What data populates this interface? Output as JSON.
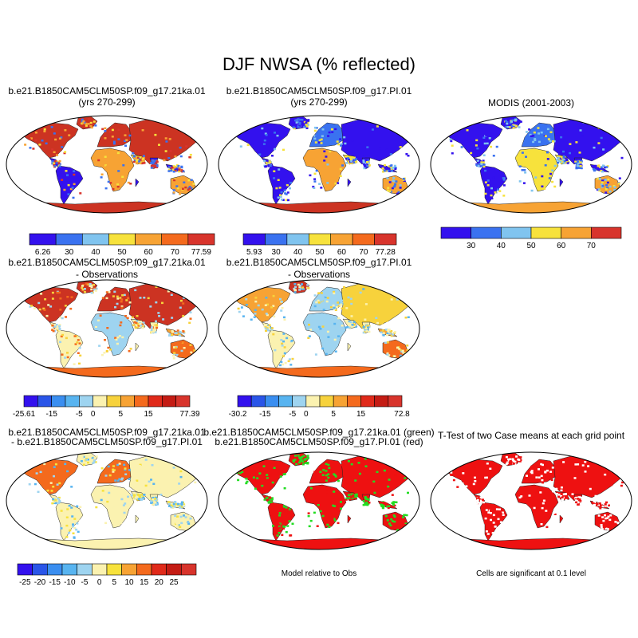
{
  "main_title": "DJF NWSA (% reflected)",
  "chart_data": [
    {
      "type": "map",
      "title_line1": "b.e21.B1850CAM5CLM50SP.f09_g17.21ka.01",
      "title_line2": "(yrs 270-299)",
      "colorbar": {
        "labels": [
          "6.26",
          "30",
          "40",
          "50",
          "60",
          "70",
          "77.59"
        ],
        "colors": [
          "#3311ee",
          "#3a72f0",
          "#80c4ef",
          "#f7e23c",
          "#f7a334",
          "#f46a1d",
          "#d8342c"
        ]
      }
    },
    {
      "type": "map",
      "title_line1": "b.e21.B1850CAM5CLM50SP.f09_g17.PI.01",
      "title_line2": "(yrs 270-299)",
      "colorbar": {
        "labels": [
          "5.93",
          "30",
          "40",
          "50",
          "60",
          "70",
          "77.28"
        ],
        "colors": [
          "#3311ee",
          "#3a72f0",
          "#80c4ef",
          "#f7e23c",
          "#f7a334",
          "#f46a1d",
          "#d8342c"
        ]
      }
    },
    {
      "type": "map",
      "title_line1": "MODIS (2001-2003)",
      "title_line2": "",
      "colorbar": {
        "labels": [
          "30",
          "40",
          "50",
          "60",
          "70"
        ],
        "colors": [
          "#3311ee",
          "#3a72f0",
          "#80c4ef",
          "#f7e23c",
          "#f7a334",
          "#d8342c"
        ]
      }
    },
    {
      "type": "map",
      "title_line1": "b.e21.B1850CAM5CLM50SP.f09_g17.21ka.01",
      "title_line2": "- Observations",
      "colorbar": {
        "labels": [
          "-25.61",
          "-15",
          "-5",
          "0",
          "5",
          "15",
          "77.39"
        ],
        "colors": [
          "#3311ee",
          "#2a55e8",
          "#3a8ef0",
          "#58b4f0",
          "#9ed4f0",
          "#fbf2b0",
          "#f7d23c",
          "#f7a334",
          "#f46a1d",
          "#e02a1a",
          "#c41c14",
          "#d8342c"
        ]
      }
    },
    {
      "type": "map",
      "title_line1": "b.e21.B1850CAM5CLM50SP.f09_g17.PI.01",
      "title_line2": "- Observations",
      "colorbar": {
        "labels": [
          "-30.2",
          "-15",
          "-5",
          "0",
          "5",
          "15",
          "72.8"
        ],
        "colors": [
          "#3311ee",
          "#2a55e8",
          "#3a8ef0",
          "#58b4f0",
          "#9ed4f0",
          "#fbf2b0",
          "#f7d23c",
          "#f7a334",
          "#f46a1d",
          "#e02a1a",
          "#c41c14",
          "#d8342c"
        ]
      }
    },
    {
      "type": "map",
      "title_line1": "b.e21.B1850CAM5CLM50SP.f09_g17.21ka.01",
      "title_line2": "- b.e21.B1850CAM5CLM50SP.f09_g17.PI.01",
      "colorbar": {
        "labels": [
          "-25",
          "-20",
          "-15",
          "-10",
          "-5",
          "0",
          "5",
          "10",
          "15",
          "20",
          "25"
        ],
        "colors": [
          "#3311ee",
          "#2a55e8",
          "#3a8ef0",
          "#58b4f0",
          "#9ed4f0",
          "#fbf2b0",
          "#f7e23c",
          "#f7a334",
          "#f46a1d",
          "#e02a1a",
          "#c41c14",
          "#d8342c"
        ]
      }
    },
    {
      "type": "map",
      "title_line1": "b.e21.B1850CAM5CLM50SP.f09_g17.21ka.01 (green)",
      "title_line2": "b.e21.B1850CAM5CLM50SP.f09_g17.PI.01 (red)",
      "footnote": "Model relative to Obs"
    },
    {
      "type": "map",
      "title_line1": "T-Test of two Case means at each grid point",
      "title_line2": "",
      "footnote": "Cells are significant at 0.1 level"
    }
  ],
  "palette": {
    "ocean": "#ffffff",
    "outline": "#000000",
    "red": "#ee1111",
    "green": "#22dd22",
    "dark_red": "#cc3322",
    "cold_blue": "#3311ee",
    "mid_blue": "#3a72f0",
    "cream": "#fbf2b0"
  }
}
